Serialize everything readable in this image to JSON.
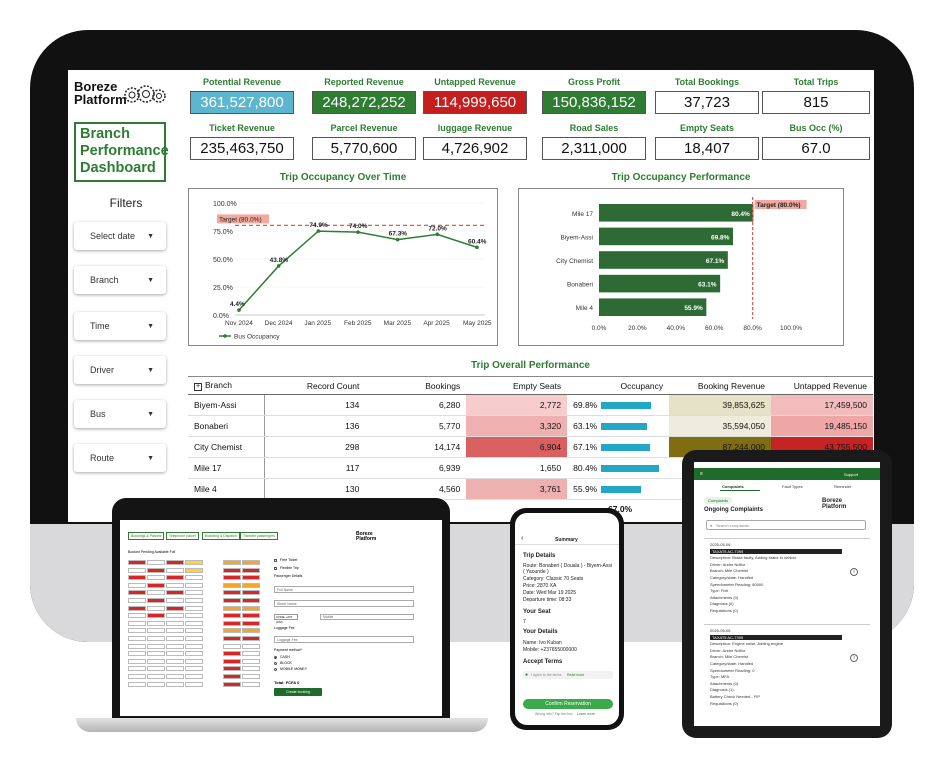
{
  "dashboard": {
    "logo_line1": "Boreze",
    "logo_line2": "Platform",
    "title_lines": [
      "Branch",
      "Performance",
      "Dashboard"
    ],
    "filters_heading": "Filters",
    "filters": [
      "Select date",
      "Branch",
      "Time",
      "Driver",
      "Bus",
      "Route"
    ],
    "kpis_row1": [
      {
        "label": "Potential Revenue",
        "value": "361,527,800",
        "style": "blue"
      },
      {
        "label": "Reported Revenue",
        "value": "248,272,252",
        "style": "green"
      },
      {
        "label": "Untapped Revenue",
        "value": "114,999,650",
        "style": "red"
      },
      {
        "label": "Gross Profit",
        "value": "150,836,152",
        "style": "green"
      },
      {
        "label": "Total Bookings",
        "value": "37,723",
        "style": "plain"
      },
      {
        "label": "Total Trips",
        "value": "815",
        "style": "plain"
      }
    ],
    "kpis_row2": [
      {
        "label": "Ticket Revenue",
        "value": "235,463,750"
      },
      {
        "label": "Parcel Revenue",
        "value": "5,770,600"
      },
      {
        "label": "luggage Revenue",
        "value": "4,726,902"
      },
      {
        "label": "Road Sales",
        "value": "2,311,000"
      },
      {
        "label": "Empty Seats",
        "value": "18,407"
      },
      {
        "label": "Bus Occ (%)",
        "value": "67.0"
      }
    ],
    "occupancy_time_title": "Trip Occupancy Over Time",
    "occupancy_perf_title": "Trip Occupancy Performance",
    "table_title": "Trip Overall Performance",
    "table_columns": [
      "Branch",
      "Record Count",
      "Bookings",
      "Empty Seats",
      "Occupancy",
      "Booking Revenue",
      "Untapped Revenue"
    ],
    "table_expand_icon": "plus-square-icon",
    "table_rows": [
      {
        "branch": "Biyem-Assi",
        "records": "134",
        "bookings": "6,280",
        "empty": "2,772",
        "occ": "69.8%",
        "occ_val": 69.8,
        "booking_rev": "39,853,625",
        "untapped": "17,459,500",
        "empty_color": "#f6cccc",
        "book_color": "#e6e2c8",
        "untap_color": "#f3bcbc"
      },
      {
        "branch": "Bonaberi",
        "records": "136",
        "bookings": "5,770",
        "empty": "3,320",
        "occ": "63.1%",
        "occ_val": 63.1,
        "booking_rev": "35,594,050",
        "untapped": "19,485,150",
        "empty_color": "#efb0b0",
        "book_color": "#eeecdc",
        "untap_color": "#eea6a6"
      },
      {
        "branch": "City Chemist",
        "records": "298",
        "bookings": "14,174",
        "empty": "6,904",
        "occ": "67.1%",
        "occ_val": 67.1,
        "booking_rev": "87,244,000",
        "untapped": "43,755,500",
        "empty_color": "#d96060",
        "book_color": "#7f6d12",
        "untap_color": "#c62424"
      },
      {
        "branch": "Mile 17",
        "records": "117",
        "bookings": "6,939",
        "empty": "1,650",
        "occ": "80.4%",
        "occ_val": 80.4,
        "booking_rev": "",
        "untapped": "",
        "empty_color": "#ffffff",
        "book_color": "#ffffff",
        "untap_color": "#ffffff"
      },
      {
        "branch": "Mile 4",
        "records": "130",
        "bookings": "4,560",
        "empty": "3,761",
        "occ": "55.9%",
        "occ_val": 55.9,
        "booking_rev": "",
        "untapped": "",
        "empty_color": "#efb0b0",
        "book_color": "#ffffff",
        "untap_color": "#ffffff"
      }
    ],
    "table_footer_fragment": "67.0%"
  },
  "chart_data": [
    {
      "type": "line",
      "title": "Trip Occupancy Over Time",
      "categories": [
        "Nov 2024",
        "Dec 2024",
        "Jan 2025",
        "Feb 2025",
        "Mar 2025",
        "Apr 2025",
        "May 2025"
      ],
      "series": [
        {
          "name": "Bus Occupancy",
          "values": [
            4.4,
            43.8,
            74.9,
            74.0,
            67.3,
            72.0,
            60.4
          ],
          "labels": [
            "4.4%",
            "43.8%",
            "74.9%",
            "74.0%",
            "67.3%",
            "72.0%",
            "60.4%"
          ]
        }
      ],
      "yticks": [
        "0.0%",
        "25.0%",
        "50.0%",
        "75.0%",
        "100.0%"
      ],
      "ylim": [
        0,
        100
      ],
      "target": {
        "value": 80,
        "label": "Target (80.0%)"
      },
      "color": "#2e7d32",
      "target_color": "#e05a4f"
    },
    {
      "type": "bar",
      "orientation": "horizontal",
      "title": "Trip Occupancy Performance",
      "categories": [
        "Mile 17",
        "Biyem-Assi",
        "City Chemist",
        "Bonaberi",
        "Mile 4"
      ],
      "values": [
        80.4,
        69.8,
        67.1,
        63.1,
        55.9
      ],
      "labels": [
        "80.4%",
        "69.8%",
        "67.1%",
        "63.1%",
        "55.9%"
      ],
      "xticks": [
        "0.0%",
        "20.0%",
        "40.0%",
        "60.0%",
        "80.0%",
        "100.0%"
      ],
      "xlim": [
        0,
        100
      ],
      "target": {
        "value": 80,
        "label": "Target (80.0%)"
      },
      "color": "#2e6b34"
    }
  ],
  "laptop": {
    "tabs": [
      "Bookings & Parcels",
      "Telephone parcel",
      "Boarding & Dispatch",
      "Transfer passengers"
    ],
    "legend": "Booked   Pending   Available   Full",
    "logo_line1": "Boreze",
    "logo_line2": "Platform",
    "fields": [
      "Free Ticket",
      "Flexible Trip",
      "Passenger Details",
      "Full Name",
      "Street Name",
      "Mobile",
      "Luggage Fee",
      "Luggage Fee",
      "Payment method*",
      "CASH",
      "BLOCK",
      "MOBILE MONEY"
    ],
    "code_value": "CODE  +237 (CM)",
    "total": "Total: FCFA 0",
    "button": "Create booking"
  },
  "phone": {
    "header": "Summary",
    "trip_details": "Trip Details",
    "route": "Route: Bonaberi ( Douala ) - Biyem-Assi ( Yaounde )",
    "category": "Category: Classic 70 Seats",
    "price": "Price: 2870 XA",
    "date": "Date: Wed Mar 19 2025",
    "departure": "Departure time: 08:33",
    "your_seat": "Your Seat",
    "seat_value": "7",
    "your_details": "Your Details",
    "name": "Name: Ivo Kuban",
    "mobile": "Mobile: +237655000000",
    "accept": "Accept Terms",
    "agree": "I agree to the terms",
    "read_more": "Read more",
    "button": "Confirm Reservation",
    "terms": "Wrong info? Tap the box",
    "learn": "Learn more"
  },
  "tablet": {
    "tabs": [
      "Complaints",
      "Fault Types",
      "Reminder"
    ],
    "user": "Support",
    "back": "Complaints",
    "heading": "Ongoing Complaints",
    "search": "Search complaints",
    "logo_line1": "Boreze",
    "logo_line2": "Platform",
    "complaint1": [
      "2025-05-06",
      "TAXAT5 AC-7395",
      "Description: Brake faulty, Adding brake in vehicle",
      "Driver: Andre Ndifor",
      "Branch: Mile Chemist",
      "Category/state: Handled",
      "Speedometer Reading: 80000",
      "Type: Fixit",
      "Attachments (0)",
      "Diagnosis (0)",
      "Requisitions (0)"
    ],
    "complaint2": [
      "2025-05-06",
      "TAXAT5 AC-7395",
      "Description: Engine noise, Adding engine",
      "Driver: Andre Ndifor",
      "Branch: Mile Chemist",
      "Category/state: Handled",
      "Speedometer Reading: 0",
      "Type: MFA",
      "Attachments (0)",
      "Diagnosis (1)",
      "Battery Check Needed - FIP",
      "Requisitions (0)"
    ]
  }
}
